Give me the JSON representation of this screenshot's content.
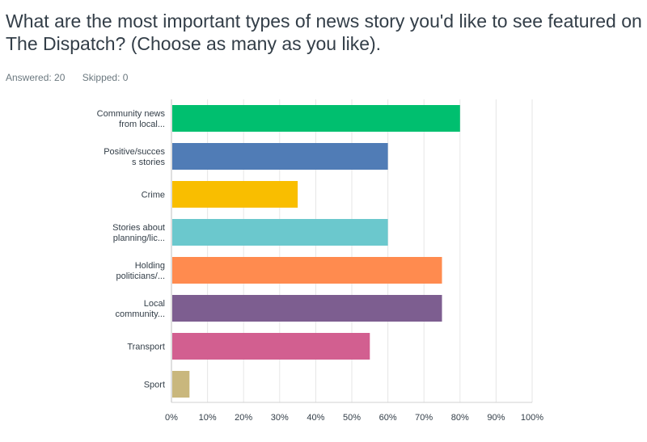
{
  "question": {
    "title": "What are the most important types of news story you'd like to see featured on The Dispatch? (Choose as many as you like)."
  },
  "stats": {
    "answered_label": "Answered: 20",
    "skipped_label": "Skipped: 0"
  },
  "chart_data": {
    "type": "bar",
    "orientation": "horizontal",
    "categories": [
      [
        "Community news",
        "from local..."
      ],
      [
        "Positive/succes",
        "s stories"
      ],
      [
        "Crime"
      ],
      [
        "Stories about",
        "planning/lic..."
      ],
      [
        "Holding",
        "politicians/..."
      ],
      [
        "Local",
        "community..."
      ],
      [
        "Transport"
      ],
      [
        "Sport"
      ]
    ],
    "values": [
      80,
      60,
      35,
      60,
      75,
      75,
      55,
      5
    ],
    "colors": [
      "#00bf6f",
      "#507cb6",
      "#f9be00",
      "#6bc8cd",
      "#ff8b4f",
      "#7d5e90",
      "#d25f90",
      "#c9b77d"
    ],
    "xlim": [
      0,
      100
    ],
    "xticks": [
      "0%",
      "10%",
      "20%",
      "30%",
      "40%",
      "50%",
      "60%",
      "70%",
      "80%",
      "90%",
      "100%"
    ],
    "grid": true,
    "xlabel": "",
    "ylabel": ""
  }
}
